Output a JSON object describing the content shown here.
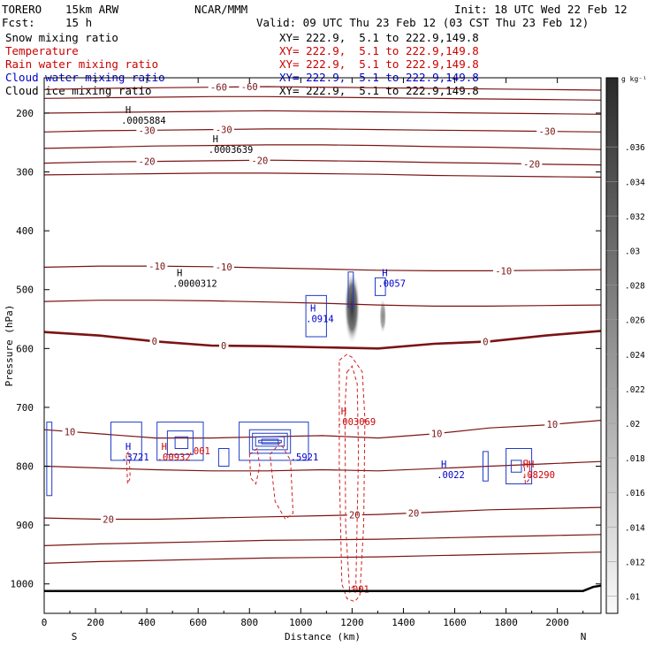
{
  "header": {
    "model": "TORERO",
    "resolution": "15km ARW",
    "org": "NCAR/MMM",
    "init": "Init: 18 UTC Wed 22 Feb 12",
    "fcst_label": "Fcst:",
    "fcst_value": "15 h",
    "valid": "Valid: 09 UTC Thu 23 Feb 12 (03 CST Thu 23 Feb 12)"
  },
  "fields": [
    {
      "name": "Snow mixing ratio",
      "color": "#000000",
      "xy": "XY= 222.9,  5.1 to 222.9,149.8"
    },
    {
      "name": "Temperature",
      "color": "#cc0000",
      "xy": "XY= 222.9,  5.1 to 222.9,149.8"
    },
    {
      "name": "Rain water mixing ratio",
      "color": "#cc0000",
      "xy": "XY= 222.9,  5.1 to 222.9,149.8"
    },
    {
      "name": "Cloud water mixing ratio",
      "color": "#0000cc",
      "xy": "XY= 222.9,  5.1 to 222.9,149.8"
    },
    {
      "name": "Cloud ice mixing ratio",
      "color": "#000000",
      "xy": "XY= 222.9,  5.1 to 222.9,149.8"
    }
  ],
  "chart_data": {
    "type": "contour",
    "xlabel": "Distance (km)",
    "ylabel": "Pressure (hPa)",
    "xlim": [
      0,
      2170
    ],
    "ylim": [
      1050,
      140
    ],
    "x_ticks": [
      "0",
      "200",
      "400",
      "600",
      "800",
      "1000",
      "1200",
      "1400",
      "1600",
      "1800",
      "2000"
    ],
    "y_ticks": [
      "200",
      "300",
      "400",
      "500",
      "600",
      "700",
      "800",
      "900",
      "1000"
    ],
    "x_end_labels": {
      "left": "S",
      "right": "N"
    },
    "colorbar": {
      "unit": "g kg⁻¹",
      "ticks": [
        ".01",
        ".012",
        ".014",
        ".016",
        ".018",
        ".02",
        ".022",
        ".024",
        ".026",
        ".028",
        ".03",
        ".032",
        ".034",
        ".036"
      ]
    },
    "isotherms": [
      {
        "value": -60,
        "label": "-60",
        "labels_at_km": [
          [
            680,
            -60
          ],
          [
            800,
            -60
          ]
        ],
        "p": [
          160,
          158,
          157,
          156,
          155,
          156,
          157,
          158,
          159,
          160,
          161
        ]
      },
      {
        "value": -50,
        "label": "",
        "p": [
          175,
          174,
          173,
          172,
          172,
          173,
          174,
          175,
          176,
          177,
          178
        ]
      },
      {
        "value": -40,
        "label": "",
        "p": [
          200,
          199,
          198,
          197,
          196,
          197,
          198,
          199,
          200,
          201,
          202
        ]
      },
      {
        "value": -30,
        "label": "-30",
        "labels_at_km": [
          [
            400,
            -30
          ],
          [
            700,
            -30
          ],
          [
            1960,
            -30
          ]
        ],
        "p": [
          232,
          230,
          229,
          228,
          227,
          227,
          228,
          229,
          230,
          231,
          232
        ]
      },
      {
        "value": -25,
        "label": "",
        "p": [
          260,
          258,
          256,
          255,
          254,
          254,
          255,
          257,
          258,
          260,
          262
        ]
      },
      {
        "value": -20,
        "label": "-20",
        "labels_at_km": [
          [
            400,
            -20
          ],
          [
            840,
            -20
          ],
          [
            1900,
            -20
          ]
        ],
        "p": [
          285,
          283,
          282,
          281,
          280,
          281,
          282,
          284,
          285,
          287,
          288
        ]
      },
      {
        "value": -15,
        "label": "",
        "p": [
          305,
          304,
          303,
          302,
          302,
          303,
          304,
          306,
          307,
          308,
          309
        ]
      },
      {
        "value": -10,
        "label": "-10",
        "labels_at_km": [
          [
            440,
            -10
          ],
          [
            700,
            -10
          ],
          [
            1790,
            -10
          ]
        ],
        "p": [
          462,
          460,
          460,
          461,
          463,
          465,
          467,
          468,
          468,
          467,
          466
        ]
      },
      {
        "value": -5,
        "label": "",
        "p": [
          520,
          518,
          518,
          519,
          521,
          523,
          526,
          528,
          528,
          527,
          526
        ]
      },
      {
        "value": 0,
        "label": "0",
        "labels_at_km": [
          [
            430,
            0
          ],
          [
            700,
            0
          ],
          [
            1720,
            0
          ]
        ],
        "p": [
          572,
          578,
          588,
          595,
          596,
          598,
          600,
          592,
          588,
          578,
          570
        ]
      },
      {
        "value": 10,
        "label": "10",
        "labels_at_km": [
          [
            100,
            10
          ],
          [
            1530,
            10
          ],
          [
            1980,
            10
          ]
        ],
        "p": [
          738,
          745,
          752,
          752,
          750,
          748,
          752,
          745,
          735,
          730,
          722
        ]
      },
      {
        "value": 15,
        "label": "",
        "p": [
          800,
          803,
          806,
          808,
          808,
          806,
          808,
          804,
          800,
          796,
          792
        ]
      },
      {
        "value": 20,
        "label": "20",
        "labels_at_km": [
          [
            250,
            20
          ],
          [
            1210,
            20
          ],
          [
            1440,
            20
          ]
        ],
        "p": [
          888,
          890,
          890,
          888,
          886,
          884,
          882,
          878,
          874,
          872,
          870
        ]
      },
      {
        "value": 25,
        "label": "",
        "p": [
          935,
          932,
          930,
          928,
          926,
          925,
          924,
          922,
          920,
          918,
          916
        ]
      },
      {
        "value": 30,
        "label": "",
        "p": [
          965,
          962,
          960,
          958,
          956,
          955,
          954,
          952,
          950,
          948,
          946
        ]
      }
    ],
    "max_labels": [
      {
        "km": 300,
        "p": 218,
        "marker": "H",
        "value": ".0005884",
        "color": "#000000"
      },
      {
        "km": 640,
        "p": 268,
        "marker": "H",
        "value": ".0003639",
        "color": "#000000"
      },
      {
        "km": 500,
        "p": 495,
        "marker": "H",
        "value": ".0000312",
        "color": "#000000"
      },
      {
        "km": 1300,
        "p": 495,
        "marker": "H",
        "value": ".0057",
        "color": "#0000cc"
      },
      {
        "km": 1020,
        "p": 555,
        "marker": "H",
        "value": ".0914",
        "color": "#0000cc"
      },
      {
        "km": 1140,
        "p": 730,
        "marker": "H",
        "value": ".003069",
        "color": "#cc0000"
      },
      {
        "km": 300,
        "p": 790,
        "marker": "H",
        "value": ".3721",
        "color": "#0000cc"
      },
      {
        "km": 440,
        "p": 790,
        "marker": "H",
        "value": ".00932",
        "color": "#cc0000"
      },
      {
        "km": 560,
        "p": 780,
        "marker": "",
        "value": ".001",
        "color": "#cc0000"
      },
      {
        "km": 960,
        "p": 790,
        "marker": "",
        "value": ".5921",
        "color": "#0000cc"
      },
      {
        "km": 1530,
        "p": 820,
        "marker": "H",
        "value": ".0022",
        "color": "#0000cc"
      },
      {
        "km": 1860,
        "p": 820,
        "marker": "HH",
        "value": ".08290",
        "color": "#cc0000"
      },
      {
        "km": 1180,
        "p": 1015,
        "marker": "",
        "value": ".001",
        "color": "#cc0000"
      }
    ]
  }
}
